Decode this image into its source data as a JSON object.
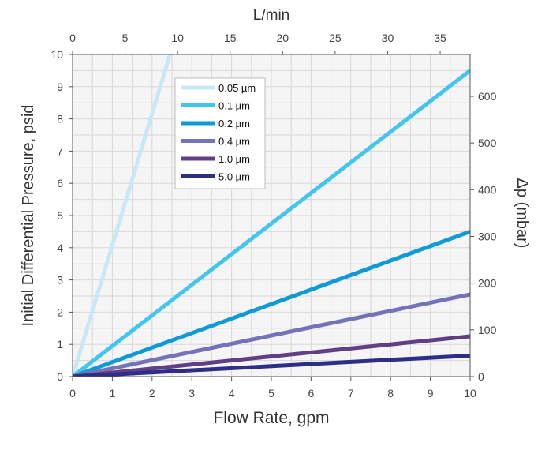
{
  "chart_data": {
    "type": "line",
    "title": "",
    "xlabel": "Flow Rate, gpm",
    "ylabel": "Initial Differential Pressure, psid",
    "x2label": "L/min",
    "y2label": "Δp (mbar)",
    "xlim": [
      0,
      10
    ],
    "ylim": [
      0,
      10
    ],
    "x2lim": [
      0,
      37.85
    ],
    "y2lim": [
      0,
      689.5
    ],
    "xticks": [
      "0",
      "1",
      "2",
      "3",
      "4",
      "5",
      "6",
      "7",
      "8",
      "9",
      "10"
    ],
    "yticks": [
      "0",
      "1",
      "2",
      "3",
      "4",
      "5",
      "6",
      "7",
      "8",
      "9",
      "10"
    ],
    "x2ticks": [
      "0",
      "5",
      "10",
      "15",
      "20",
      "25",
      "30",
      "35"
    ],
    "y2ticks": [
      "0",
      "100",
      "200",
      "300",
      "400",
      "500",
      "600"
    ],
    "grid": true,
    "legend_position": "top-center",
    "series": [
      {
        "name": "0.05 µm",
        "color": "#c8e8f8",
        "x": [
          0,
          2.45
        ],
        "y": [
          0,
          10
        ]
      },
      {
        "name": "0.1 µm",
        "color": "#45c4ee",
        "x": [
          0,
          10
        ],
        "y": [
          0,
          9.5
        ]
      },
      {
        "name": "0.2 µm",
        "color": "#0d9ad6",
        "x": [
          0,
          10
        ],
        "y": [
          0,
          4.5
        ]
      },
      {
        "name": "0.4 µm",
        "color": "#7472b8",
        "x": [
          0,
          10
        ],
        "y": [
          0,
          2.55
        ]
      },
      {
        "name": "1.0 µm",
        "color": "#623f85",
        "x": [
          0,
          10
        ],
        "y": [
          0,
          1.25
        ]
      },
      {
        "name": "5.0 µm",
        "color": "#2d2e86",
        "x": [
          0,
          10
        ],
        "y": [
          0,
          0.65
        ]
      }
    ]
  }
}
